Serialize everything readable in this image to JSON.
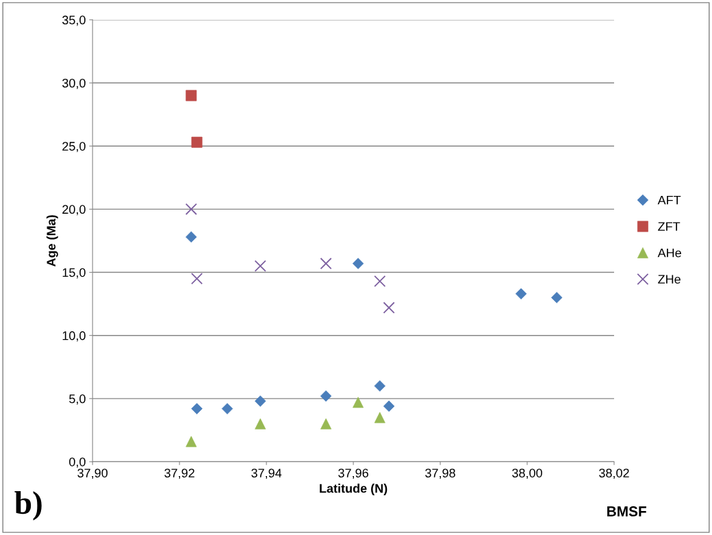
{
  "chart_data": {
    "type": "scatter",
    "xlabel": "Latitude (N)",
    "ylabel": "Age (Ma)",
    "xlim": [
      37.9,
      38.02
    ],
    "xticks": [
      {
        "value": 37.9,
        "label": "37,90"
      },
      {
        "value": 37.92,
        "label": "37,92"
      },
      {
        "value": 37.94,
        "label": "37,94"
      },
      {
        "value": 37.96,
        "label": "37,96"
      },
      {
        "value": 37.98,
        "label": "37,98"
      },
      {
        "value": 38.0,
        "label": "38,00"
      },
      {
        "value": 38.02,
        "label": "38,02"
      }
    ],
    "ylim": [
      0,
      35
    ],
    "yticks": [
      {
        "value": 0,
        "label": "0,0"
      },
      {
        "value": 5,
        "label": "5,0"
      },
      {
        "value": 10,
        "label": "10,0"
      },
      {
        "value": 15,
        "label": "15,0"
      },
      {
        "value": 20,
        "label": "20,0"
      },
      {
        "value": 25,
        "label": "25,0"
      },
      {
        "value": 30,
        "label": "30,0"
      },
      {
        "value": 35,
        "label": "35,0"
      }
    ],
    "grid": "y",
    "legend": "right",
    "series": [
      {
        "name": "AFT",
        "color": "#4a7ebb",
        "marker": "diamond",
        "x": [
          37.9227,
          37.924,
          37.931,
          37.9386,
          37.9537,
          37.9611,
          37.9661,
          37.9682,
          37.9986,
          38.0068
        ],
        "values": [
          17.8,
          4.2,
          4.2,
          4.8,
          5.2,
          15.7,
          6.0,
          4.4,
          13.3,
          13.0
        ]
      },
      {
        "name": "ZFT",
        "color": "#be4b48",
        "marker": "square",
        "x": [
          37.9227,
          37.924
        ],
        "values": [
          29.0,
          25.3
        ]
      },
      {
        "name": "AHe",
        "color": "#98b954",
        "marker": "triangle",
        "x": [
          37.9227,
          37.9386,
          37.9537,
          37.9611,
          37.9661
        ],
        "values": [
          1.6,
          3.0,
          3.0,
          4.7,
          3.5
        ]
      },
      {
        "name": "ZHe",
        "color": "#7d60a0",
        "marker": "cross",
        "x": [
          37.9227,
          37.924,
          37.9386,
          37.9537,
          37.9661,
          37.9682
        ],
        "values": [
          20.0,
          14.5,
          15.5,
          15.7,
          14.3,
          12.2
        ]
      }
    ],
    "annotations": [
      "b)",
      "BMSF"
    ]
  }
}
